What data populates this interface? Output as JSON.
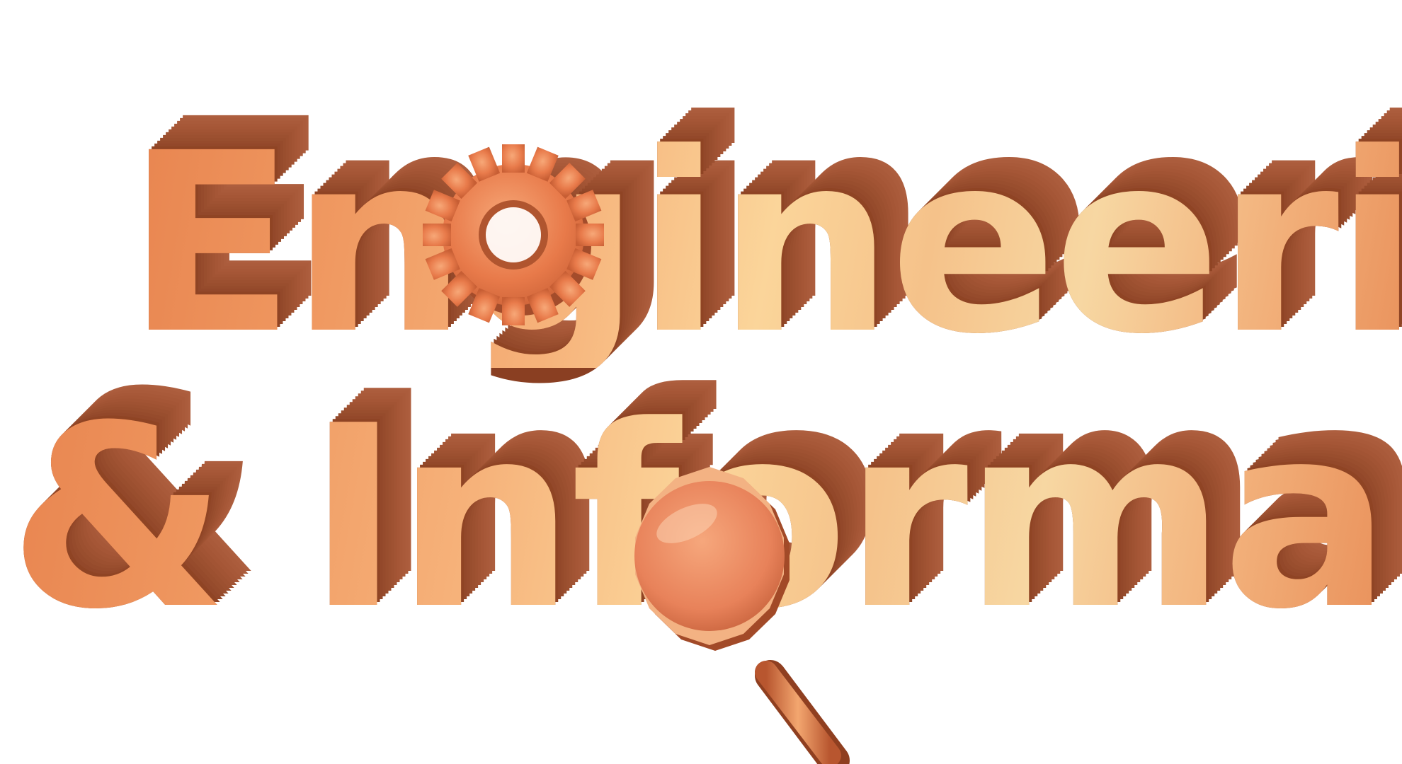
{
  "image": {
    "line_1_visible_text": "Engineeri",
    "line_2_visible_text": "& Informa",
    "background_color": "#ffffff",
    "letter_face_color": "#f6b27a",
    "letter_side_color": "#a5562f",
    "highlight_color": "#fbe3b0",
    "icons": [
      "gear-icon",
      "magnifying-glass-icon"
    ]
  }
}
